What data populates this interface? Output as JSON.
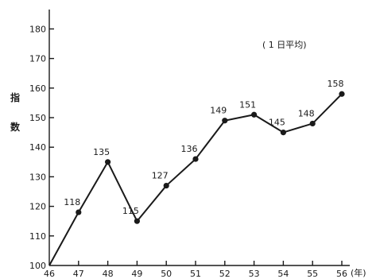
{
  "chart_data": {
    "type": "line",
    "title": "",
    "xlabel": "",
    "ylabel": "指数",
    "x_unit": "(年)",
    "note": "( 1 日平均)",
    "categories": [
      "46",
      "47",
      "48",
      "49",
      "50",
      "51",
      "52",
      "53",
      "54",
      "55",
      "56"
    ],
    "values": [
      100,
      118,
      135,
      115,
      127,
      136,
      149,
      151,
      145,
      148,
      158
    ],
    "data_labels": [
      "",
      "118",
      "135",
      "115",
      "127",
      "136",
      "149",
      "151",
      "145",
      "148",
      "158"
    ],
    "y_ticks": [
      100,
      110,
      120,
      130,
      140,
      150,
      160,
      170,
      180
    ],
    "ylim": [
      100,
      180
    ],
    "grid": false,
    "legend": "none"
  }
}
